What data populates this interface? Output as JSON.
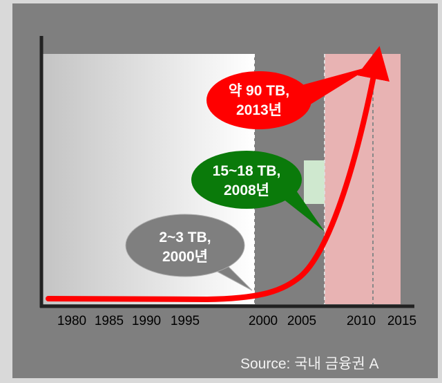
{
  "x_axis": {
    "labels": [
      "1980",
      "1985",
      "1990",
      "1995",
      "2000",
      "2005",
      "2010",
      "2015"
    ]
  },
  "callouts": [
    {
      "lines": [
        "2~3 TB,",
        "2000년"
      ]
    },
    {
      "lines": [
        "15~18 TB,",
        "2008년"
      ]
    },
    {
      "lines": [
        "약 90 TB,",
        "2013년"
      ]
    }
  ],
  "source": "Source: 국내 금융권 A"
}
